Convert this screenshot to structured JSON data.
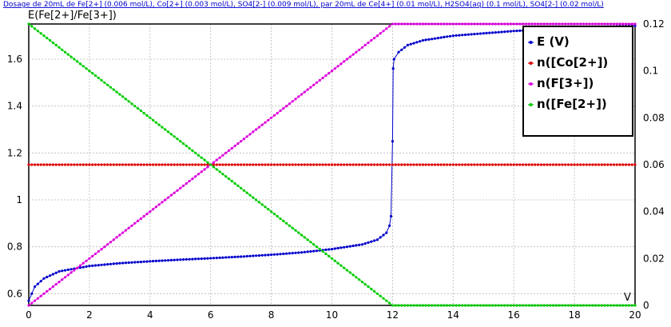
{
  "chart_data": {
    "type": "scatter",
    "title": "Dosage de 20mL de Fe[2+] (0.006 mol/L), Co[2+] (0.003 mol/L), SO4[2-] (0.009 mol/L),  par 20mL  de Ce[4+] (0.01 mol/L), H2SO4(aq) (0.1 mol/L), SO4[2-] (0.02 mol/L)",
    "ylabel": "E(Fe[2+]/Fe[3+])",
    "xlabel": "V",
    "xlim": [
      0,
      20
    ],
    "ylim_left": [
      0.55,
      1.75
    ],
    "ylim_right": [
      0,
      0.12
    ],
    "x_ticks": [
      "0",
      "2",
      "4",
      "6",
      "8",
      "10",
      "12",
      "14",
      "16",
      "18",
      "20"
    ],
    "y_left_ticks": [
      "0.6",
      "0.8",
      "1",
      "1.2",
      "1.4",
      "1.6"
    ],
    "y_right_ticks": [
      "0",
      "0.02",
      "0.04",
      "0.06",
      "0.08",
      "0.1",
      "0.12"
    ],
    "grid": true,
    "legend_position": "top-right",
    "series": [
      {
        "name": "E  (V)",
        "axis": "left",
        "color": "#0000cc",
        "points": [
          [
            0,
            0.57
          ],
          [
            0.2,
            0.63
          ],
          [
            0.5,
            0.665
          ],
          [
            1,
            0.695
          ],
          [
            2,
            0.718
          ],
          [
            3,
            0.73
          ],
          [
            4,
            0.738
          ],
          [
            5,
            0.745
          ],
          [
            6,
            0.751
          ],
          [
            7,
            0.758
          ],
          [
            8,
            0.766
          ],
          [
            9,
            0.776
          ],
          [
            10,
            0.79
          ],
          [
            11,
            0.81
          ],
          [
            11.5,
            0.83
          ],
          [
            11.8,
            0.86
          ],
          [
            11.9,
            0.89
          ],
          [
            11.95,
            0.93
          ],
          [
            12,
            1.25
          ],
          [
            12.02,
            1.56
          ],
          [
            12.05,
            1.6
          ],
          [
            12.2,
            1.63
          ],
          [
            12.5,
            1.66
          ],
          [
            13,
            1.68
          ],
          [
            14,
            1.7
          ],
          [
            15,
            1.71
          ],
          [
            16,
            1.72
          ],
          [
            17,
            1.727
          ],
          [
            18,
            1.733
          ],
          [
            19,
            1.738
          ],
          [
            20,
            1.742
          ]
        ]
      },
      {
        "name": "n([Co[2+])",
        "axis": "right",
        "color": "#dd0000",
        "points": [
          [
            0,
            0.06
          ],
          [
            20,
            0.06
          ]
        ]
      },
      {
        "name": "n(F[3+])",
        "axis": "right",
        "color": "#dd00dd",
        "points": [
          [
            0,
            0
          ],
          [
            12,
            0.12
          ],
          [
            20,
            0.12
          ]
        ]
      },
      {
        "name": "n([Fe[2+])",
        "axis": "right",
        "color": "#00cc00",
        "points": [
          [
            0,
            0.12
          ],
          [
            12,
            0
          ],
          [
            20,
            0
          ]
        ]
      }
    ]
  }
}
